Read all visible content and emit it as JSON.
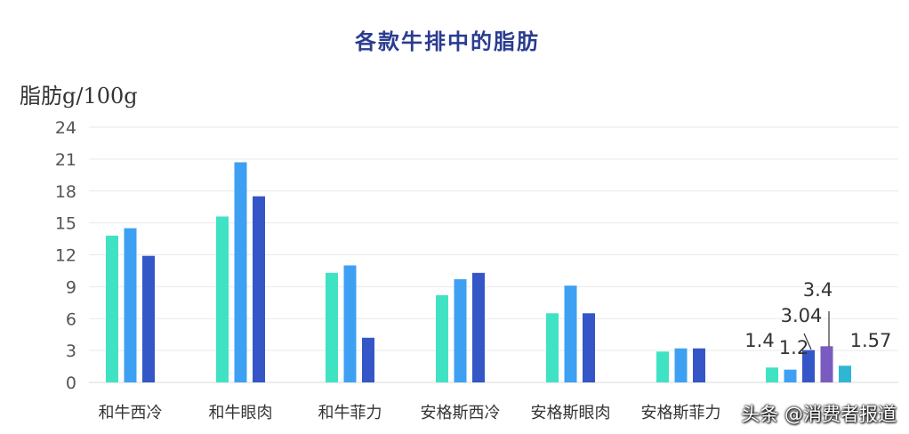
{
  "chart_data": {
    "type": "bar",
    "title": "各款牛排中的脂肪",
    "ylabel": "脂肪g/100g",
    "xlabel": "",
    "ylim": [
      0,
      24
    ],
    "yticks": [
      0,
      3,
      6,
      9,
      12,
      15,
      18,
      21,
      24
    ],
    "grid": true,
    "categories": [
      "和牛西冷",
      "和牛眼肉",
      "和牛菲力",
      "安格斯西冷",
      "安格斯眼肉",
      "安格斯菲力",
      ""
    ],
    "series": [
      {
        "color": "#3fe3c4",
        "values": [
          13.8,
          15.6,
          10.3,
          8.2,
          6.5,
          2.9,
          1.4
        ]
      },
      {
        "color": "#3ea0f2",
        "values": [
          14.5,
          20.7,
          11.0,
          9.7,
          9.1,
          3.2,
          1.2
        ]
      },
      {
        "color": "#3456c6",
        "values": [
          11.9,
          17.5,
          4.2,
          10.3,
          6.5,
          3.2,
          3.04
        ]
      },
      {
        "color": "#7a5cc0",
        "values": [
          null,
          null,
          null,
          null,
          null,
          null,
          3.4
        ]
      },
      {
        "color": "#2fb6d2",
        "values": [
          null,
          null,
          null,
          null,
          null,
          null,
          1.57
        ]
      }
    ],
    "data_labels": [
      "1.4",
      "1.2",
      "3.04",
      "3.4",
      "1.57"
    ]
  },
  "watermark": "头条 @消费者报道"
}
